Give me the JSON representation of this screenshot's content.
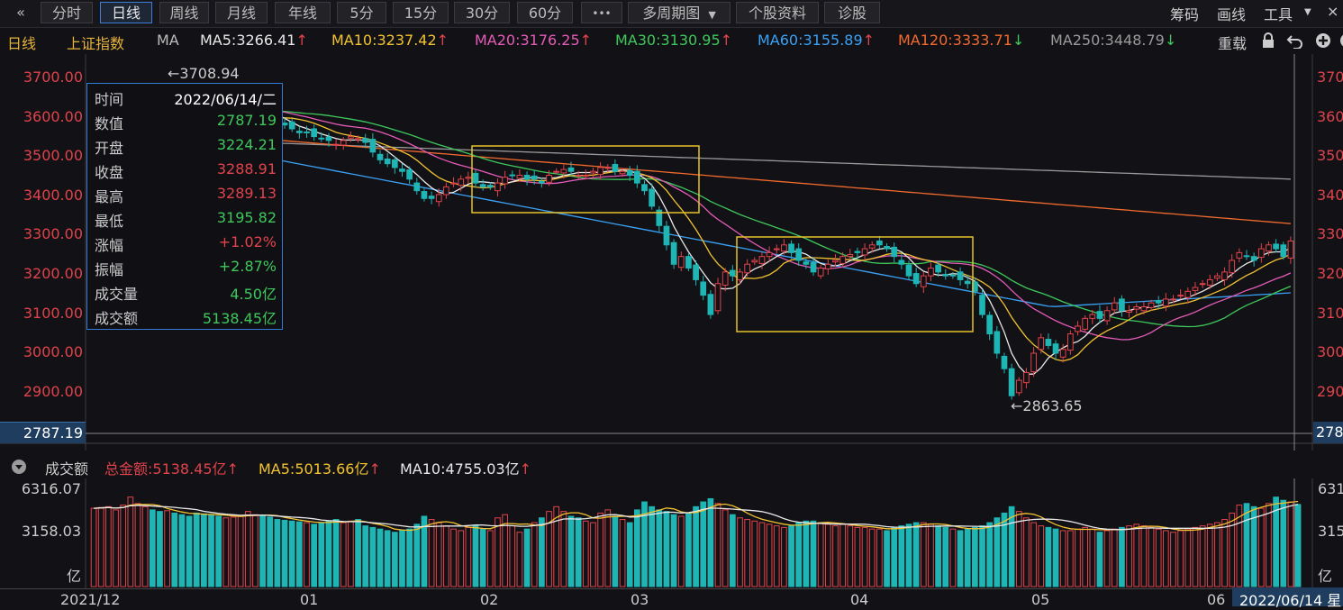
{
  "toolbar": {
    "back_icon": "«",
    "periods": [
      "分时",
      "日线",
      "周线",
      "月线",
      "年线",
      "5分",
      "15分",
      "30分",
      "60分"
    ],
    "active_index": 1,
    "more_icon": "•••",
    "multi_period_label": "多周期图",
    "stock_info_label": "个股资料",
    "diagnose_label": "诊股",
    "right": {
      "chip_label": "筹码",
      "draw_label": "画线",
      "tools_label": "工具"
    }
  },
  "ma_bar": {
    "period_label": "日线",
    "index_name": "上证指数",
    "indicator_label": "MA",
    "items": [
      {
        "text": "MA5:3266.41",
        "arrow": "up",
        "color": "#e8e8e8"
      },
      {
        "text": "MA10:3237.42",
        "arrow": "up",
        "color": "#f2c230"
      },
      {
        "text": "MA20:3176.25",
        "arrow": "up",
        "color": "#e55bb8"
      },
      {
        "text": "MA30:3130.95",
        "arrow": "up",
        "color": "#3ec85c"
      },
      {
        "text": "MA60:3155.89",
        "arrow": "up",
        "color": "#3aa1f5"
      },
      {
        "text": "MA120:3333.71",
        "arrow": "down",
        "color": "#f26a2e"
      },
      {
        "text": "MA250:3448.79",
        "arrow": "down",
        "color": "#9a9a9a"
      }
    ],
    "reload_label": "重载"
  },
  "price_axis": {
    "labels": [
      "3700.00",
      "3600.00",
      "3500.00",
      "3400.00",
      "3300.00",
      "3200.00",
      "3100.00",
      "3000.00",
      "2900.00"
    ],
    "right_labels": [
      "370",
      "360",
      "350",
      "340",
      "330",
      "320",
      "310",
      "300",
      "290"
    ],
    "cursor_label": "2787.19",
    "cursor_label_right": "278"
  },
  "annotations": {
    "high": "←3708.94",
    "low": "←2863.65"
  },
  "info": {
    "rows": [
      {
        "k": "时间",
        "v": "2022/06/14/二",
        "c": "#ffffff"
      },
      {
        "k": "数值",
        "v": "2787.19",
        "c": "#3ec85c"
      },
      {
        "k": "开盘",
        "v": "3224.21",
        "c": "#3ec85c"
      },
      {
        "k": "收盘",
        "v": "3288.91",
        "c": "#e0434b"
      },
      {
        "k": "最高",
        "v": "3289.13",
        "c": "#e0434b"
      },
      {
        "k": "最低",
        "v": "3195.82",
        "c": "#3ec85c"
      },
      {
        "k": "涨幅",
        "v": "+1.02%",
        "c": "#e0434b"
      },
      {
        "k": "振幅",
        "v": "+2.87%",
        "c": "#3ec85c"
      },
      {
        "k": "成交量",
        "v": "4.50亿",
        "c": "#3ec85c"
      },
      {
        "k": "成交额",
        "v": "5138.45亿",
        "c": "#3ec85c"
      }
    ]
  },
  "volume_bar": {
    "title": "成交额",
    "total": "总金额:5138.45亿",
    "ma5": "MA5:5013.66亿",
    "ma10": "MA10:4755.03亿",
    "axis": [
      "6316.07",
      "3158.03",
      "亿"
    ],
    "axis_right": [
      "631",
      "315",
      "亿"
    ]
  },
  "x_axis": {
    "labels": [
      "2021/12",
      "01",
      "02",
      "03",
      "04",
      "05",
      "06"
    ],
    "cursor_date": "2022/06/14 星"
  },
  "colors": {
    "up": "#e0434b",
    "down": "#1fb5b5",
    "box": "#e6c12a",
    "accent": "#2f7bd6"
  },
  "chart_data": {
    "type": "candlestick",
    "price_range": [
      2830,
      3750
    ],
    "volume_range": [
      0,
      6316.07
    ],
    "closes": [
      3600,
      3610,
      3620,
      3630,
      3640,
      3650,
      3660,
      3660,
      3655,
      3650,
      3660,
      3650,
      3640,
      3630,
      3620,
      3610,
      3600,
      3590,
      3600,
      3610,
      3620,
      3630,
      3630,
      3620,
      3600,
      3595,
      3590,
      3580,
      3570,
      3570,
      3560,
      3555,
      3550,
      3540,
      3550,
      3560,
      3555,
      3545,
      3520,
      3500,
      3490,
      3480,
      3470,
      3450,
      3420,
      3400,
      3400,
      3410,
      3430,
      3440,
      3450,
      3455,
      3440,
      3430,
      3430,
      3440,
      3455,
      3460,
      3460,
      3450,
      3450,
      3440,
      3460,
      3470,
      3475,
      3470,
      3460,
      3460,
      3470,
      3480,
      3480,
      3470,
      3470,
      3460,
      3440,
      3420,
      3380,
      3330,
      3280,
      3230,
      3250,
      3220,
      3190,
      3150,
      3100,
      3180,
      3210,
      3200,
      3210,
      3230,
      3240,
      3250,
      3260,
      3270,
      3280,
      3260,
      3240,
      3230,
      3210,
      3220,
      3230,
      3240,
      3250,
      3255,
      3260,
      3270,
      3280,
      3280,
      3270,
      3250,
      3230,
      3200,
      3180,
      3200,
      3220,
      3210,
      3200,
      3200,
      3190,
      3180,
      3160,
      3100,
      3050,
      3000,
      2960,
      2890,
      2930,
      2950,
      3000,
      3040,
      3020,
      3000,
      3010,
      3050,
      3070,
      3090,
      3100,
      3090,
      3110,
      3130,
      3110,
      3110,
      3120,
      3120,
      3130,
      3130,
      3140,
      3140,
      3150,
      3160,
      3170,
      3180,
      3190,
      3200,
      3210,
      3240,
      3260,
      3250,
      3240,
      3270,
      3280,
      3270,
      3250,
      3290
    ],
    "volumes": [
      4900,
      4950,
      5000,
      4800,
      5100,
      5600,
      5200,
      5000,
      4800,
      4700,
      4750,
      4600,
      4500,
      4400,
      4600,
      4550,
      4500,
      4400,
      4300,
      4350,
      4400,
      4700,
      4500,
      4450,
      4350,
      4200,
      4150,
      4100,
      4050,
      4000,
      3900,
      4000,
      4100,
      4200,
      4000,
      4100,
      4200,
      3800,
      3700,
      3600,
      3500,
      3400,
      3500,
      3600,
      3900,
      4400,
      4200,
      4000,
      3800,
      3600,
      3500,
      3700,
      3800,
      3600,
      3500,
      4300,
      4500,
      3800,
      3400,
      3600,
      4000,
      4300,
      4700,
      5000,
      4700,
      4400,
      4300,
      4100,
      4000,
      4600,
      4800,
      4400,
      4200,
      4000,
      4800,
      5300,
      5000,
      4800,
      4700,
      4500,
      4400,
      4600,
      5000,
      5300,
      5500,
      5200,
      4800,
      4500,
      4300,
      4200,
      4100,
      4000,
      3900,
      3800,
      3700,
      3800,
      4000,
      4100,
      4100,
      4000,
      3900,
      3800,
      3900,
      3800,
      3700,
      3700,
      3600,
      3600,
      3500,
      3700,
      3800,
      3900,
      4000,
      4000,
      3900,
      3800,
      3700,
      3600,
      3500,
      3600,
      3700,
      3800,
      4000,
      4300,
      4600,
      5000,
      4700,
      4300,
      4000,
      3800,
      3700,
      3600,
      3500,
      3500,
      3600,
      3700,
      3600,
      3400,
      3500,
      3600,
      3700,
      3800,
      3900,
      3800,
      3700,
      3600,
      3500,
      3400,
      3500,
      3600,
      3700,
      3800,
      3900,
      4000,
      4200,
      4600,
      5100,
      5200,
      5000,
      4900,
      5200,
      5600,
      5400,
      5300,
      5138
    ]
  }
}
